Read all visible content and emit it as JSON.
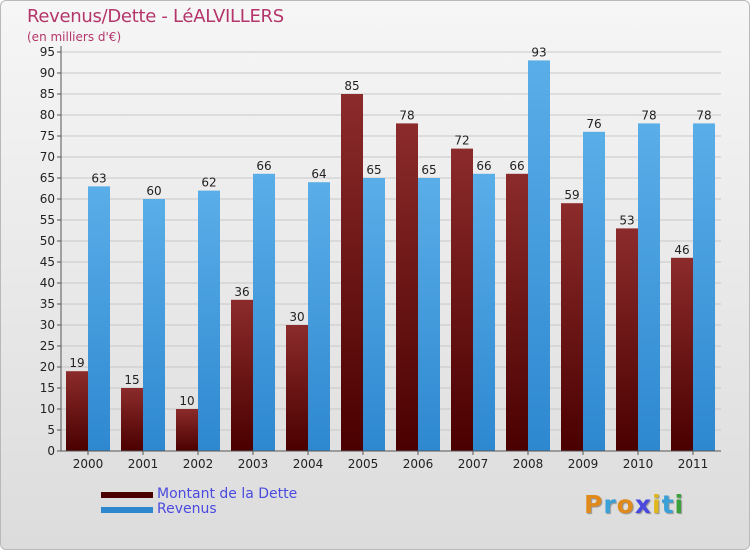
{
  "title": "Revenus/Dette - LéALVILLERS",
  "subtitle": "(en milliers d'€)",
  "logo": {
    "letters": [
      "P",
      "r",
      "o",
      "x",
      "i",
      "t",
      "i"
    ],
    "colors": [
      "#e08a1c",
      "#3aa0d8",
      "#e08a1c",
      "#4a4ae0",
      "#e0b81c",
      "#3aa0d8",
      "#3aa03a"
    ]
  },
  "colors": {
    "dette_top": "#8c2b2b",
    "dette_bottom": "#4a0000",
    "revenus_top": "#5aaee8",
    "revenus_bottom": "#2e88d0",
    "grid": "#c8c8c8",
    "axis_text": "#222222"
  },
  "chart_data": {
    "type": "bar",
    "categories": [
      "2000",
      "2001",
      "2002",
      "2003",
      "2004",
      "2005",
      "2006",
      "2007",
      "2008",
      "2009",
      "2010",
      "2011"
    ],
    "series": [
      {
        "name": "Montant de la Dette",
        "values": [
          19,
          15,
          10,
          36,
          30,
          85,
          78,
          72,
          66,
          59,
          53,
          46
        ]
      },
      {
        "name": "Revenus",
        "values": [
          63,
          60,
          62,
          66,
          64,
          65,
          65,
          66,
          93,
          76,
          78,
          78
        ]
      }
    ],
    "ylim": [
      0,
      95
    ],
    "ytick_step": 5,
    "grid": true,
    "legend_position": "bottom-left"
  }
}
